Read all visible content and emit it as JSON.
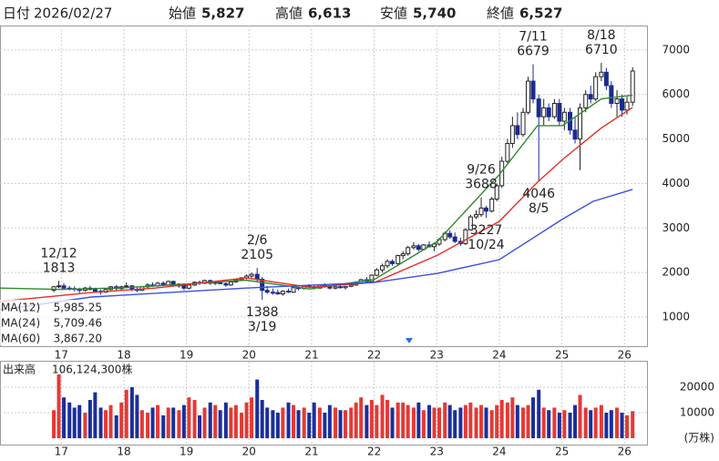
{
  "header": {
    "date_label": "日付",
    "date": "2026/02/27",
    "items": [
      {
        "name": "始値",
        "label": "5,827",
        "color": "#222222"
      },
      {
        "name": "高値",
        "label": "6,613",
        "color": "#e0302a"
      },
      {
        "name": "安値",
        "label": "5,740",
        "color": "#1e9b3a"
      },
      {
        "name": "終値",
        "label": "6,527",
        "color": "#222222"
      }
    ]
  },
  "chart_data": {
    "type": "candlestick",
    "x": [
      2016.88,
      2016.96,
      2017.04,
      2017.13,
      2017.21,
      2017.29,
      2017.38,
      2017.46,
      2017.54,
      2017.63,
      2017.71,
      2017.79,
      2017.88,
      2017.96,
      2018.04,
      2018.13,
      2018.21,
      2018.29,
      2018.38,
      2018.46,
      2018.54,
      2018.63,
      2018.71,
      2018.79,
      2018.88,
      2018.96,
      2019.04,
      2019.13,
      2019.21,
      2019.29,
      2019.38,
      2019.46,
      2019.54,
      2019.63,
      2019.71,
      2019.79,
      2019.88,
      2019.96,
      2020.04,
      2020.13,
      2020.21,
      2020.29,
      2020.38,
      2020.46,
      2020.54,
      2020.63,
      2020.71,
      2020.79,
      2020.88,
      2020.96,
      2021.04,
      2021.13,
      2021.21,
      2021.29,
      2021.38,
      2021.46,
      2021.54,
      2021.63,
      2021.71,
      2021.79,
      2021.88,
      2021.96,
      2022.04,
      2022.13,
      2022.21,
      2022.29,
      2022.38,
      2022.46,
      2022.54,
      2022.63,
      2022.71,
      2022.79,
      2022.88,
      2022.96,
      2023.04,
      2023.13,
      2023.21,
      2023.29,
      2023.38,
      2023.46,
      2023.54,
      2023.63,
      2023.71,
      2023.79,
      2023.88,
      2023.96,
      2024.04,
      2024.13,
      2024.21,
      2024.29,
      2024.38,
      2024.46,
      2024.54,
      2024.63,
      2024.71,
      2024.79,
      2024.88,
      2024.96,
      2025.04,
      2025.13,
      2025.21,
      2025.29,
      2025.38,
      2025.46,
      2025.54,
      2025.63,
      2025.71,
      2025.79,
      2025.88,
      2025.96,
      2026.04,
      2026.13
    ],
    "ohlc": [
      [
        1600,
        1700,
        1560,
        1680
      ],
      [
        1680,
        1813,
        1650,
        1700
      ],
      [
        1700,
        1760,
        1620,
        1650
      ],
      [
        1650,
        1700,
        1600,
        1640
      ],
      [
        1640,
        1690,
        1580,
        1620
      ],
      [
        1620,
        1660,
        1540,
        1600
      ],
      [
        1600,
        1680,
        1570,
        1650
      ],
      [
        1650,
        1700,
        1600,
        1620
      ],
      [
        1620,
        1660,
        1560,
        1580
      ],
      [
        1580,
        1620,
        1500,
        1560
      ],
      [
        1560,
        1640,
        1540,
        1620
      ],
      [
        1620,
        1700,
        1600,
        1680
      ],
      [
        1680,
        1720,
        1600,
        1640
      ],
      [
        1640,
        1700,
        1610,
        1680
      ],
      [
        1680,
        1780,
        1650,
        1700
      ],
      [
        1700,
        1720,
        1580,
        1620
      ],
      [
        1620,
        1680,
        1560,
        1600
      ],
      [
        1600,
        1700,
        1590,
        1680
      ],
      [
        1680,
        1760,
        1650,
        1720
      ],
      [
        1720,
        1780,
        1680,
        1700
      ],
      [
        1700,
        1790,
        1680,
        1760
      ],
      [
        1760,
        1800,
        1700,
        1720
      ],
      [
        1720,
        1820,
        1710,
        1800
      ],
      [
        1800,
        1820,
        1680,
        1700
      ],
      [
        1700,
        1760,
        1660,
        1740
      ],
      [
        1740,
        1760,
        1600,
        1650
      ],
      [
        1650,
        1740,
        1620,
        1720
      ],
      [
        1720,
        1800,
        1700,
        1780
      ],
      [
        1780,
        1820,
        1720,
        1760
      ],
      [
        1760,
        1840,
        1740,
        1820
      ],
      [
        1820,
        1840,
        1720,
        1760
      ],
      [
        1760,
        1800,
        1720,
        1780
      ],
      [
        1780,
        1820,
        1740,
        1750
      ],
      [
        1750,
        1780,
        1680,
        1720
      ],
      [
        1720,
        1800,
        1700,
        1790
      ],
      [
        1790,
        1860,
        1770,
        1840
      ],
      [
        1840,
        1900,
        1810,
        1880
      ],
      [
        1880,
        1960,
        1850,
        1920
      ],
      [
        1920,
        2000,
        1880,
        1960
      ],
      [
        1960,
        2105,
        1800,
        1850
      ],
      [
        1850,
        1900,
        1388,
        1600
      ],
      [
        1600,
        1700,
        1520,
        1560
      ],
      [
        1560,
        1640,
        1500,
        1550
      ],
      [
        1550,
        1620,
        1500,
        1520
      ],
      [
        1520,
        1600,
        1480,
        1580
      ],
      [
        1580,
        1640,
        1540,
        1560
      ],
      [
        1560,
        1680,
        1540,
        1660
      ],
      [
        1660,
        1700,
        1600,
        1640
      ],
      [
        1640,
        1720,
        1620,
        1700
      ],
      [
        1700,
        1740,
        1650,
        1680
      ],
      [
        1680,
        1720,
        1620,
        1650
      ],
      [
        1650,
        1740,
        1640,
        1720
      ],
      [
        1720,
        1760,
        1660,
        1680
      ],
      [
        1680,
        1720,
        1620,
        1650
      ],
      [
        1650,
        1700,
        1620,
        1680
      ],
      [
        1680,
        1720,
        1640,
        1660
      ],
      [
        1660,
        1700,
        1620,
        1690
      ],
      [
        1690,
        1740,
        1670,
        1720
      ],
      [
        1720,
        1800,
        1700,
        1760
      ],
      [
        1760,
        1860,
        1740,
        1840
      ],
      [
        1840,
        1900,
        1780,
        1800
      ],
      [
        1800,
        1960,
        1790,
        1940
      ],
      [
        1940,
        2100,
        1920,
        2060
      ],
      [
        2060,
        2200,
        2000,
        2150
      ],
      [
        2150,
        2300,
        2100,
        2250
      ],
      [
        2250,
        2300,
        2150,
        2200
      ],
      [
        2200,
        2400,
        2180,
        2380
      ],
      [
        2380,
        2480,
        2300,
        2420
      ],
      [
        2420,
        2600,
        2380,
        2560
      ],
      [
        2560,
        2680,
        2520,
        2600
      ],
      [
        2600,
        2640,
        2480,
        2520
      ],
      [
        2520,
        2640,
        2500,
        2620
      ],
      [
        2620,
        2700,
        2560,
        2580
      ],
      [
        2580,
        2660,
        2480,
        2640
      ],
      [
        2640,
        2780,
        2600,
        2740
      ],
      [
        2740,
        2920,
        2700,
        2880
      ],
      [
        2880,
        2950,
        2760,
        2800
      ],
      [
        2800,
        2900,
        2660,
        2700
      ],
      [
        2700,
        2780,
        2600,
        2650
      ],
      [
        2650,
        3000,
        2620,
        2960
      ],
      [
        2960,
        3300,
        2940,
        3250
      ],
      [
        3250,
        3400,
        3200,
        3300
      ],
      [
        3300,
        3688,
        3250,
        3450
      ],
      [
        3450,
        3500,
        3227,
        3380
      ],
      [
        3380,
        3700,
        3350,
        3650
      ],
      [
        3650,
        4000,
        3600,
        3950
      ],
      [
        3950,
        4600,
        3900,
        4500
      ],
      [
        4500,
        5000,
        4450,
        4900
      ],
      [
        4900,
        5500,
        4800,
        5300
      ],
      [
        5300,
        5600,
        5000,
        5100
      ],
      [
        5100,
        5700,
        5050,
        5600
      ],
      [
        5600,
        6400,
        5550,
        6300
      ],
      [
        6300,
        6679,
        5800,
        5900
      ],
      [
        5900,
        6000,
        4046,
        5500
      ],
      [
        5500,
        5900,
        5300,
        5700
      ],
      [
        5700,
        5800,
        5400,
        5500
      ],
      [
        5500,
        5900,
        5450,
        5800
      ],
      [
        5800,
        5900,
        5300,
        5400
      ],
      [
        5400,
        5700,
        5200,
        5600
      ],
      [
        5600,
        5700,
        5100,
        5200
      ],
      [
        5200,
        5500,
        4900,
        5000
      ],
      [
        5000,
        5800,
        4300,
        5700
      ],
      [
        5700,
        6100,
        5600,
        6000
      ],
      [
        6000,
        6200,
        5800,
        5900
      ],
      [
        5900,
        6500,
        5850,
        6400
      ],
      [
        6400,
        6710,
        6300,
        6500
      ],
      [
        6500,
        6600,
        6100,
        6200
      ],
      [
        6200,
        6300,
        5700,
        5800
      ],
      [
        5800,
        6100,
        5500,
        5900
      ],
      [
        5900,
        6000,
        5500,
        5650
      ],
      [
        5650,
        5950,
        5550,
        5827
      ],
      [
        5827,
        6613,
        5740,
        6527
      ]
    ],
    "up_color": "#ffffff",
    "down_color": "#1b2b8f",
    "xlim": [
      2016.02,
      2026.36
    ],
    "xticks": [
      {
        "value": 2017,
        "label": "17"
      },
      {
        "value": 2018,
        "label": "18"
      },
      {
        "value": 2019,
        "label": "19"
      },
      {
        "value": 2020,
        "label": "20"
      },
      {
        "value": 2021,
        "label": "21"
      },
      {
        "value": 2022,
        "label": "22"
      },
      {
        "value": 2023,
        "label": "23"
      },
      {
        "value": 2024,
        "label": "24"
      },
      {
        "value": 2025,
        "label": "25"
      },
      {
        "value": 2026,
        "label": "26"
      }
    ],
    "ylim": [
      345,
      7550
    ],
    "yticks": [
      1000,
      2000,
      3000,
      4000,
      5000,
      6000,
      7000
    ],
    "grid": true,
    "ma_lines": [
      {
        "name": "MA(12)",
        "color": "#2e8b2e",
        "last_label": "5,985.25",
        "x": [
          2016.02,
          2017.0,
          2018.0,
          2019.0,
          2019.95,
          2020.97,
          2022.01,
          2023.01,
          2024.0,
          2024.61,
          2025.01,
          2025.63,
          2026.13
        ],
        "values": [
          1650,
          1620,
          1660,
          1740,
          1830,
          1630,
          1850,
          2700,
          4200,
          5300,
          5300,
          5900,
          5985.25
        ]
      },
      {
        "name": "MA(24)",
        "color": "#e0302a",
        "last_label": "5,709.46",
        "x": [
          2016.02,
          2017.48,
          2018.5,
          2019.95,
          2020.97,
          2022.01,
          2023.01,
          2024.0,
          2024.61,
          2025.01,
          2025.63,
          2026.13
        ],
        "values": [
          1350,
          1550,
          1650,
          1880,
          1670,
          1780,
          2390,
          3150,
          4030,
          4540,
          5250,
          5709.46
        ]
      },
      {
        "name": "MA(60)",
        "color": "#3a50e0",
        "last_label": "3,867.20",
        "x": [
          2016.02,
          2017.48,
          2019.95,
          2022.01,
          2023.01,
          2024.0,
          2025.01,
          2025.5,
          2026.13
        ],
        "values": [
          1160,
          1450,
          1650,
          1780,
          1980,
          2290,
          3200,
          3600,
          3867.2
        ]
      }
    ],
    "annotations": [
      {
        "x": 2016.96,
        "date": "12/12",
        "value": 1813
      },
      {
        "x": 2020.13,
        "date": "2/6",
        "value": 2105
      },
      {
        "x": 2020.21,
        "date": "3/19",
        "value": 1388
      },
      {
        "x": 2023.71,
        "date": "9/26",
        "value": 3688
      },
      {
        "x": 2023.79,
        "date": "10/24",
        "value": 3227
      },
      {
        "x": 2024.54,
        "date": "7/11",
        "value": 6679
      },
      {
        "x": 2024.63,
        "date": "8/5",
        "value": 4046
      },
      {
        "x": 2025.63,
        "date": "8/18",
        "value": 6710
      }
    ],
    "volume": {
      "title": "出来高",
      "total_label": "106,124,300株",
      "unit": "(万株)",
      "up_color": "#e53935",
      "down_color": "#1a2f9c",
      "ylim": [
        -2500,
        30000
      ],
      "yticks": [
        10000,
        20000
      ],
      "values": [
        11000,
        25000,
        16000,
        14000,
        12000,
        13000,
        10000,
        15000,
        18000,
        12000,
        11000,
        13000,
        9000,
        14000,
        19000,
        20000,
        17000,
        11000,
        10000,
        12000,
        13000,
        9000,
        12000,
        12000,
        11000,
        13000,
        16000,
        15000,
        9000,
        12000,
        14000,
        13000,
        11000,
        14000,
        12000,
        13000,
        10000,
        14000,
        16000,
        23000,
        15000,
        12000,
        11000,
        10000,
        12000,
        14000,
        13000,
        11000,
        12000,
        10000,
        14000,
        12000,
        10000,
        13000,
        12000,
        11000,
        11000,
        12000,
        14000,
        16000,
        13000,
        15000,
        13000,
        17000,
        15000,
        12000,
        14000,
        14000,
        13000,
        12000,
        14000,
        11000,
        13000,
        12000,
        12000,
        14000,
        13000,
        11000,
        12000,
        13000,
        14000,
        12000,
        13000,
        12000,
        11000,
        13000,
        15000,
        14000,
        16000,
        13000,
        12000,
        13000,
        16000,
        19000,
        12000,
        11000,
        12000,
        10000,
        11000,
        10000,
        13000,
        17000,
        12000,
        11000,
        12000,
        13000,
        10000,
        11000,
        12000,
        10000,
        9000,
        10612.43
      ]
    }
  }
}
